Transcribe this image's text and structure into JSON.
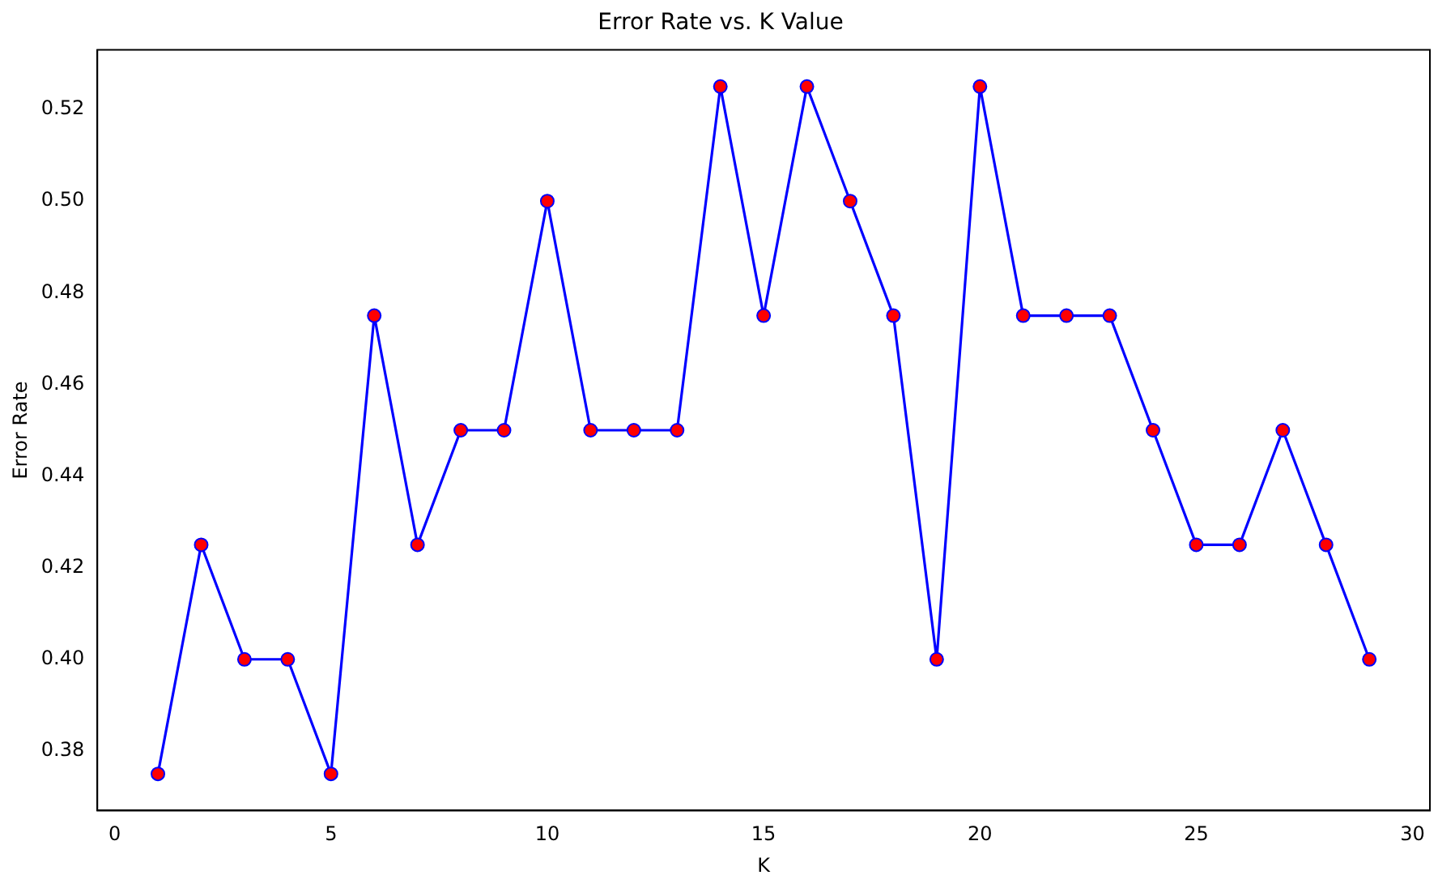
{
  "chart_data": {
    "type": "line",
    "title": "Error Rate vs. K Value",
    "xlabel": "K",
    "ylabel": "Error Rate",
    "x": [
      1,
      2,
      3,
      4,
      5,
      6,
      7,
      8,
      9,
      10,
      11,
      12,
      13,
      14,
      15,
      16,
      17,
      18,
      19,
      20,
      21,
      22,
      23,
      24,
      25,
      26,
      27,
      28,
      29
    ],
    "series": [
      {
        "color": "#0000ff",
        "values": [
          0.375,
          0.425,
          0.4,
          0.4,
          0.375,
          0.475,
          0.425,
          0.45,
          0.45,
          0.5,
          0.45,
          0.45,
          0.45,
          0.525,
          0.475,
          0.525,
          0.5,
          0.475,
          0.4,
          0.525,
          0.475,
          0.475,
          0.475,
          0.45,
          0.425,
          0.425,
          0.45,
          0.425,
          0.4
        ]
      }
    ],
    "xlim": [
      -0.4,
      30.4
    ],
    "xticks": [
      0,
      5,
      10,
      15,
      20,
      25,
      30
    ],
    "ylim": [
      0.367,
      0.533
    ],
    "yticks": [
      {
        "value": 0.38,
        "label": "0.38"
      },
      {
        "value": 0.4,
        "label": "0.40"
      },
      {
        "value": 0.42,
        "label": "0.42"
      },
      {
        "value": 0.44,
        "label": "0.44"
      },
      {
        "value": 0.46,
        "label": "0.46"
      },
      {
        "value": 0.48,
        "label": "0.48"
      },
      {
        "value": 0.5,
        "label": "0.50"
      },
      {
        "value": 0.52,
        "label": "0.52"
      }
    ],
    "marker": "circle",
    "line_style": "solid",
    "grid": false,
    "legend": false
  }
}
